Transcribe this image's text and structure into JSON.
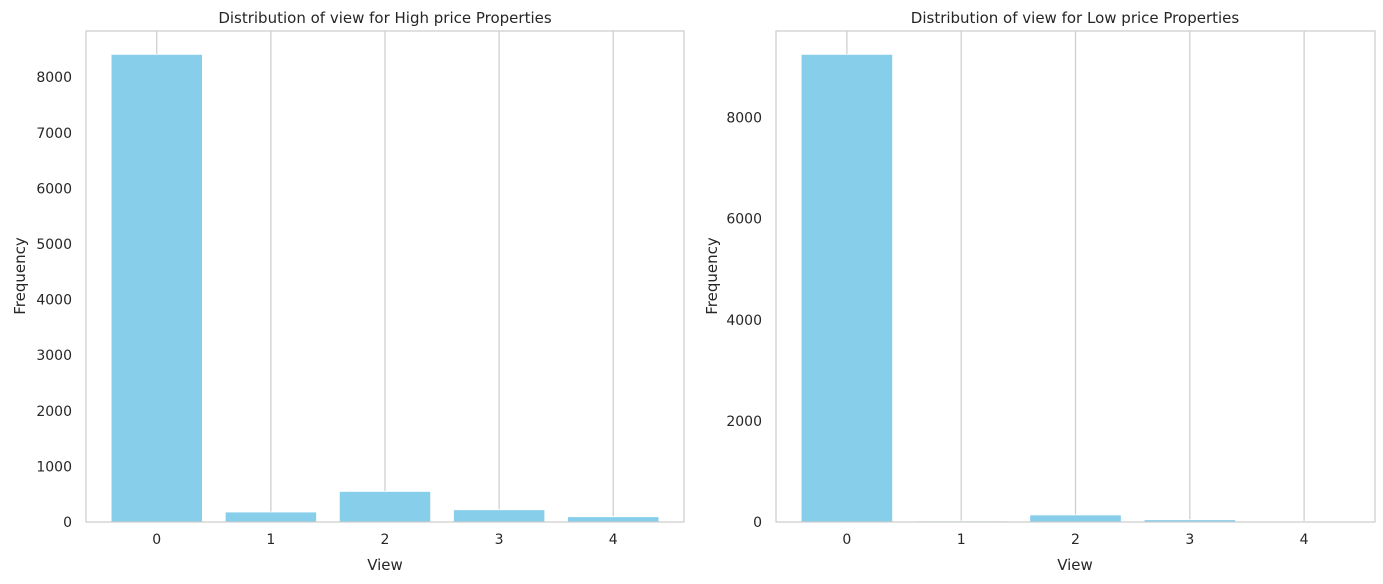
{
  "chart_data": [
    {
      "type": "bar",
      "title": "Distribution of view for High price Properties",
      "xlabel": "View",
      "ylabel": "Frequency",
      "categories": [
        "0",
        "1",
        "2",
        "3",
        "4"
      ],
      "values": [
        8410,
        180,
        550,
        220,
        95
      ],
      "ylim": [
        0,
        8830
      ],
      "yticks": [
        "0",
        "1000",
        "2000",
        "3000",
        "4000",
        "5000",
        "6000",
        "7000",
        "8000"
      ],
      "grid": "vertical",
      "bar_color": "#87ceeb"
    },
    {
      "type": "bar",
      "title": "Distribution of view for Low price Properties",
      "xlabel": "View",
      "ylabel": "Frequency",
      "categories": [
        "0",
        "1",
        "2",
        "3",
        "4"
      ],
      "values": [
        9250,
        20,
        140,
        45,
        15
      ],
      "ylim": [
        0,
        9712
      ],
      "yticks": [
        "0",
        "2000",
        "4000",
        "6000",
        "8000"
      ],
      "grid": "vertical",
      "bar_color": "#87ceeb"
    }
  ]
}
